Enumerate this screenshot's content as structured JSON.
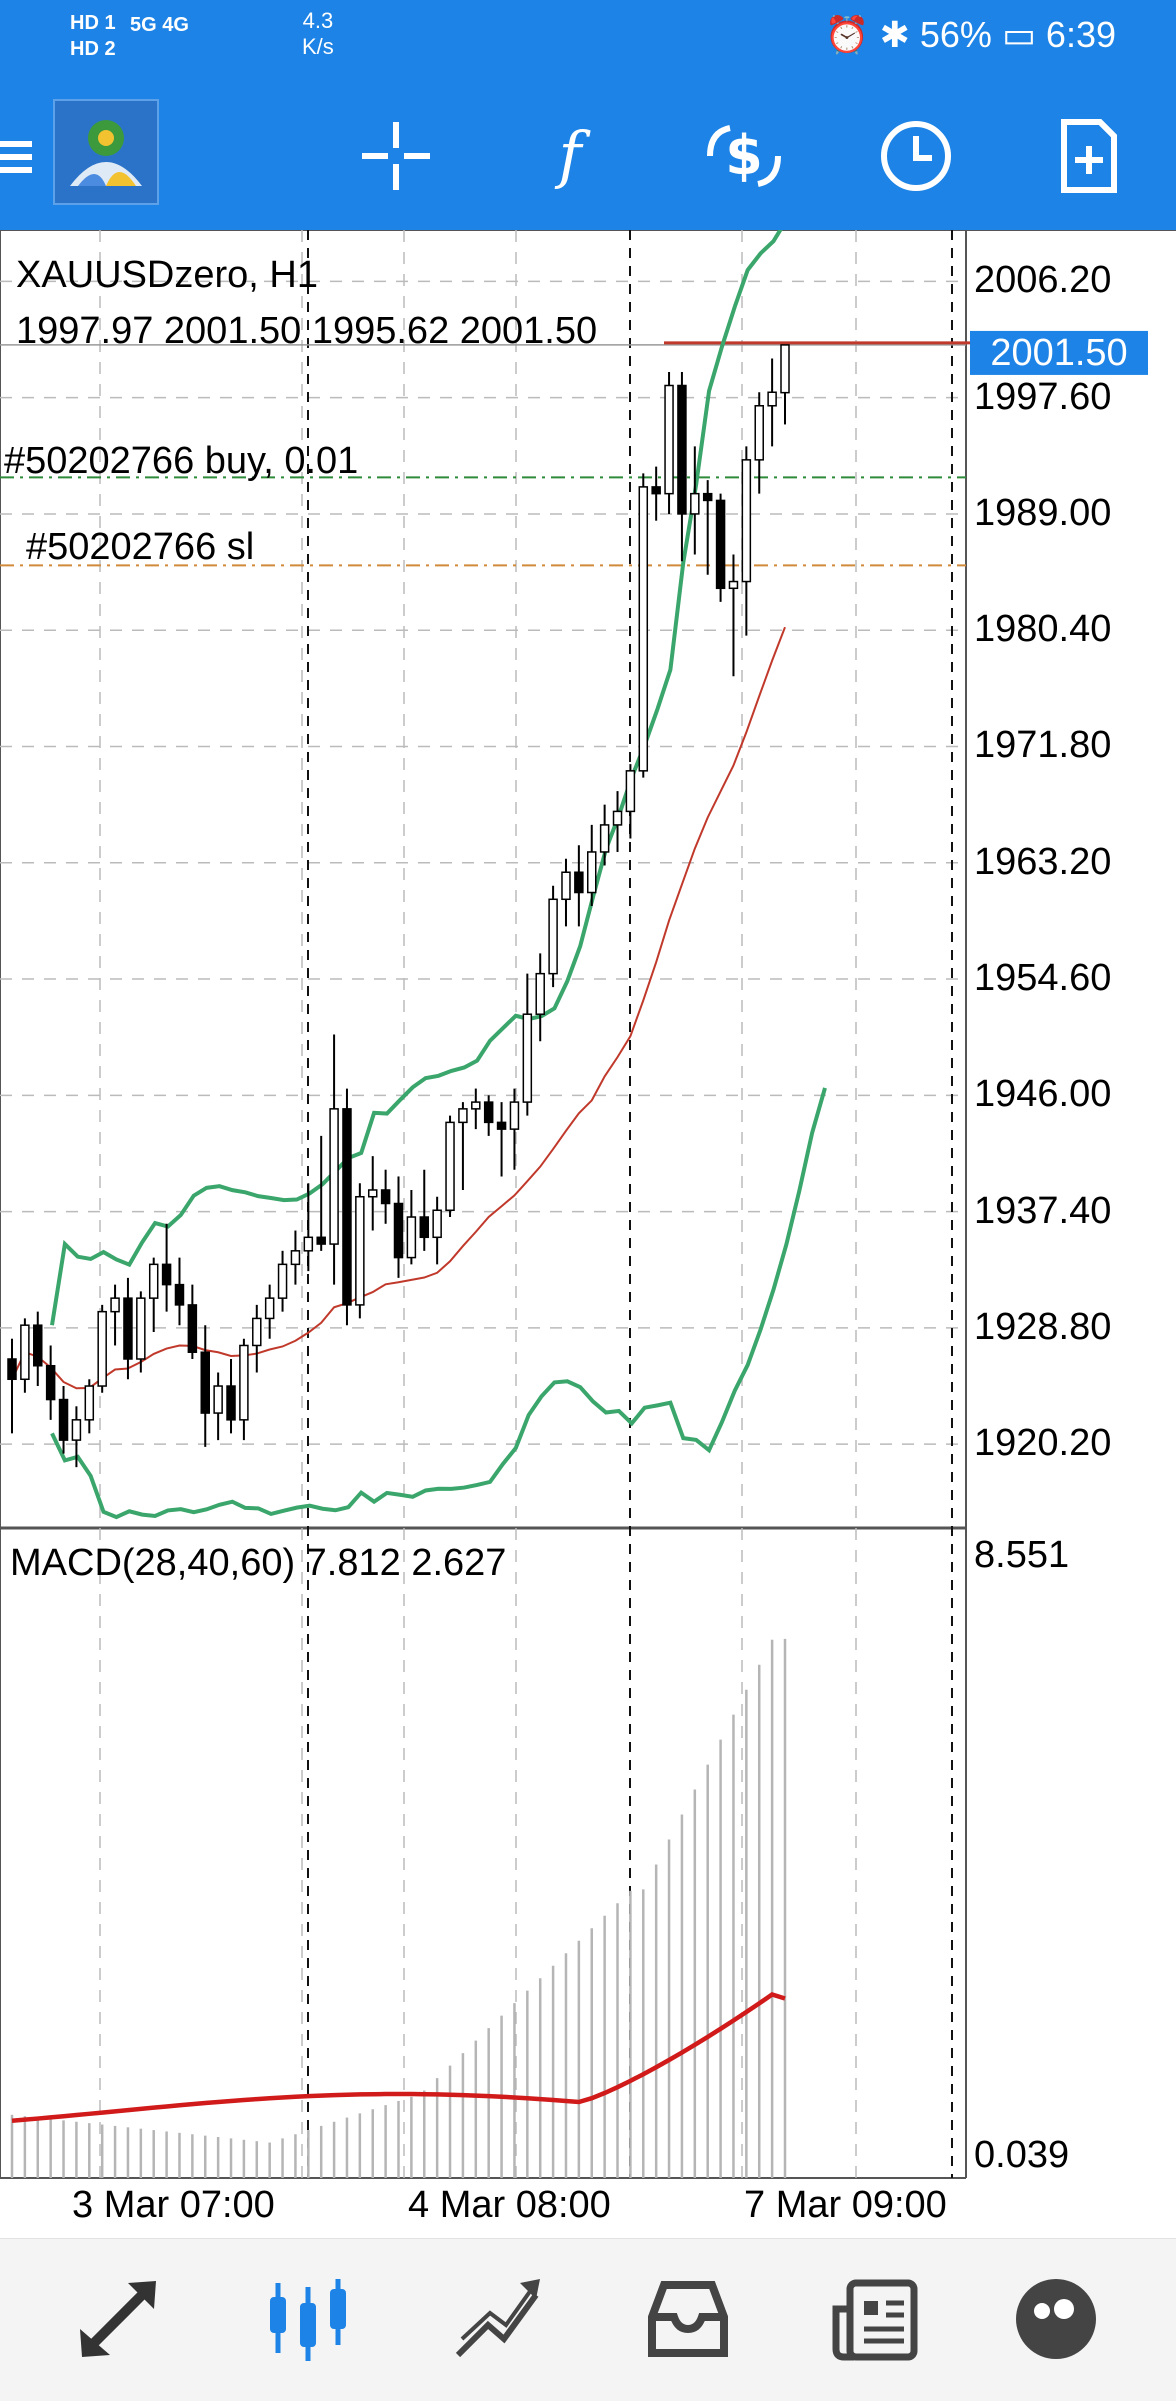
{
  "status_bar": {
    "sim_labels": [
      "HD 1",
      "HD 2"
    ],
    "network": "5G 4G",
    "speed": "4.3",
    "speed_unit": "K/s",
    "battery": "56%",
    "time": "6:39"
  },
  "toolbar": {
    "icons": [
      "menu-icon",
      "metatrader-logo",
      "crosshair-icon",
      "indicators-icon",
      "trade-icon",
      "timeframe-icon",
      "new-order-icon"
    ]
  },
  "chart": {
    "symbol": "XAUUSDzero, H1",
    "ohlc": "1997.97 2001.50 1995.62 2001.50",
    "order_buy_label": "#50202766 buy, 0.01",
    "order_sl_label": "#50202766 sl",
    "price_labels": [
      "2006.20",
      "1997.60",
      "1989.00",
      "1980.40",
      "1971.80",
      "1963.20",
      "1954.60",
      "1946.00",
      "1937.40",
      "1928.80",
      "1920.20"
    ],
    "current_price": "2001.50",
    "current_price_color": "#1d83e6",
    "ask_line_color": "#c0392b",
    "bollinger_color": "#3aa66b",
    "ma_color": "#c0392b",
    "macd_label": "MACD(28,40,60) 7.812 2.627",
    "macd_max": "8.551",
    "macd_min": "0.039",
    "macd_signal_color": "#d11a1a",
    "time_labels": [
      "3 Mar 07:00",
      "4 Mar 08:00",
      "7 Mar 09:00"
    ]
  },
  "chart_data": {
    "type": "candlestick",
    "symbol": "XAUUSDzero",
    "timeframe": "H1",
    "ylim": [
      1914,
      2010
    ],
    "candles": [
      [
        1926.5,
        1928.0,
        1921.0,
        1925.0
      ],
      [
        1925.0,
        1929.5,
        1924.0,
        1929.0
      ],
      [
        1929.0,
        1930.0,
        1924.5,
        1926.0
      ],
      [
        1926.0,
        1927.5,
        1922.0,
        1923.5
      ],
      [
        1923.5,
        1924.5,
        1919.5,
        1920.5
      ],
      [
        1920.5,
        1923.0,
        1918.5,
        1922.0
      ],
      [
        1922.0,
        1925.0,
        1921.0,
        1924.5
      ],
      [
        1924.5,
        1930.5,
        1924.0,
        1930.0
      ],
      [
        1930.0,
        1932.0,
        1927.5,
        1931.0
      ],
      [
        1931.0,
        1932.5,
        1925.0,
        1926.5
      ],
      [
        1926.5,
        1931.5,
        1925.5,
        1931.0
      ],
      [
        1931.0,
        1934.0,
        1928.5,
        1933.5
      ],
      [
        1933.5,
        1936.5,
        1930.0,
        1932.0
      ],
      [
        1932.0,
        1934.0,
        1929.0,
        1930.5
      ],
      [
        1930.5,
        1932.0,
        1926.5,
        1927.0
      ],
      [
        1927.0,
        1929.0,
        1920.0,
        1922.5
      ],
      [
        1922.5,
        1925.5,
        1920.5,
        1924.5
      ],
      [
        1924.5,
        1926.5,
        1921.0,
        1922.0
      ],
      [
        1922.0,
        1928.0,
        1920.5,
        1927.5
      ],
      [
        1927.5,
        1930.5,
        1925.5,
        1929.5
      ],
      [
        1929.5,
        1932.0,
        1928.0,
        1931.0
      ],
      [
        1931.0,
        1934.5,
        1930.0,
        1933.5
      ],
      [
        1933.5,
        1936.0,
        1932.0,
        1934.5
      ],
      [
        1934.5,
        1939.5,
        1933.0,
        1935.5
      ],
      [
        1935.5,
        1943.0,
        1934.5,
        1935.0
      ],
      [
        1935.0,
        1950.5,
        1932.0,
        1945.0
      ],
      [
        1945.0,
        1946.5,
        1929.0,
        1930.5
      ],
      [
        1930.5,
        1939.5,
        1929.5,
        1938.5
      ],
      [
        1938.5,
        1941.5,
        1936.0,
        1939.0
      ],
      [
        1939.0,
        1940.5,
        1936.5,
        1938.0
      ],
      [
        1938.0,
        1940.0,
        1932.5,
        1934.0
      ],
      [
        1934.0,
        1939.0,
        1933.5,
        1937.0
      ],
      [
        1937.0,
        1940.5,
        1934.5,
        1935.5
      ],
      [
        1935.5,
        1938.5,
        1933.5,
        1937.5
      ],
      [
        1937.5,
        1944.5,
        1937.0,
        1944.0
      ],
      [
        1944.0,
        1945.5,
        1939.0,
        1945.0
      ],
      [
        1945.0,
        1946.5,
        1943.5,
        1945.5
      ],
      [
        1945.5,
        1946.0,
        1943.0,
        1944.0
      ],
      [
        1944.0,
        1945.5,
        1940.0,
        1943.5
      ],
      [
        1943.5,
        1946.5,
        1940.5,
        1945.5
      ],
      [
        1945.5,
        1955.0,
        1944.5,
        1952.0
      ],
      [
        1952.0,
        1956.5,
        1950.0,
        1955.0
      ],
      [
        1955.0,
        1961.5,
        1954.0,
        1960.5
      ],
      [
        1960.5,
        1963.5,
        1958.5,
        1962.5
      ],
      [
        1962.5,
        1964.5,
        1958.5,
        1961.0
      ],
      [
        1961.0,
        1966.0,
        1960.0,
        1964.0
      ],
      [
        1964.0,
        1967.5,
        1963.0,
        1966.0
      ],
      [
        1966.0,
        1968.5,
        1964.0,
        1967.0
      ],
      [
        1967.0,
        1970.5,
        1965.0,
        1970.0
      ],
      [
        1970.0,
        1992.0,
        1969.5,
        1991.0
      ],
      [
        1991.0,
        1992.5,
        1988.5,
        1990.5
      ],
      [
        1990.5,
        1999.5,
        1989.0,
        1998.5
      ],
      [
        1998.5,
        1999.5,
        1985.5,
        1989.0
      ],
      [
        1989.0,
        1994.0,
        1986.0,
        1990.5
      ],
      [
        1990.5,
        1991.5,
        1984.5,
        1990.0
      ],
      [
        1990.0,
        1990.5,
        1982.5,
        1983.5
      ],
      [
        1983.5,
        1986.0,
        1977.0,
        1984.0
      ],
      [
        1984.0,
        1994.0,
        1980.0,
        1993.0
      ],
      [
        1993.0,
        1998.0,
        1990.5,
        1997.0
      ],
      [
        1997.0,
        2000.5,
        1994.0,
        1998.0
      ],
      [
        1997.97,
        2001.5,
        1995.62,
        2001.5
      ]
    ],
    "order_buy_price": 1991.7,
    "order_sl_price": 1985.2,
    "current_price": 2001.5,
    "macd": {
      "params": "28,40,60",
      "main": 7.812,
      "signal": 2.627,
      "ylim": [
        0.039,
        8.551
      ]
    }
  }
}
